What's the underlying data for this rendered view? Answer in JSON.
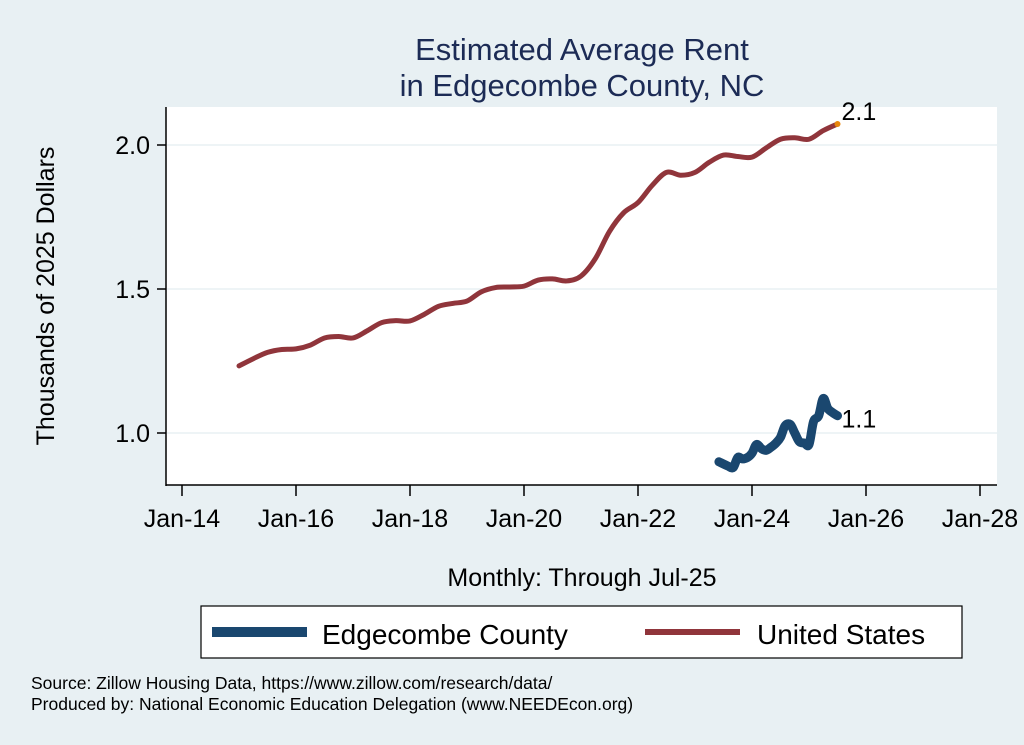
{
  "chart_data": {
    "type": "line",
    "title": [
      "Estimated Average Rent",
      "in Edgecombe County, NC"
    ],
    "xlabel": "Monthly: Through Jul-25",
    "ylabel": "Thousands of 2025 Dollars",
    "xlim": [
      2013.75,
      2028.3
    ],
    "ylim": [
      0.82,
      2.13
    ],
    "x_ticks": [
      {
        "value": 2014,
        "label": "Jan-14"
      },
      {
        "value": 2016,
        "label": "Jan-16"
      },
      {
        "value": 2018,
        "label": "Jan-18"
      },
      {
        "value": 2020,
        "label": "Jan-20"
      },
      {
        "value": 2022,
        "label": "Jan-22"
      },
      {
        "value": 2024,
        "label": "Jan-24"
      },
      {
        "value": 2026,
        "label": "Jan-26"
      },
      {
        "value": 2028,
        "label": "Jan-28"
      }
    ],
    "y_ticks": [
      {
        "value": 1.0,
        "label": "1.0"
      },
      {
        "value": 1.5,
        "label": "1.5"
      },
      {
        "value": 2.0,
        "label": "2.0"
      }
    ],
    "grid": "horizontal",
    "legend_position": "bottom",
    "series": [
      {
        "name": "Edgecombe County",
        "color": "#1a476f",
        "end_label": "1.1",
        "points": [
          [
            2023.42,
            0.9
          ],
          [
            2023.58,
            0.885
          ],
          [
            2023.67,
            0.88
          ],
          [
            2023.75,
            0.915
          ],
          [
            2023.83,
            0.91
          ],
          [
            2023.92,
            0.915
          ],
          [
            2024.0,
            0.93
          ],
          [
            2024.08,
            0.96
          ],
          [
            2024.17,
            0.945
          ],
          [
            2024.25,
            0.94
          ],
          [
            2024.33,
            0.95
          ],
          [
            2024.42,
            0.965
          ],
          [
            2024.5,
            0.985
          ],
          [
            2024.58,
            1.025
          ],
          [
            2024.67,
            1.03
          ],
          [
            2024.75,
            1.0
          ],
          [
            2024.83,
            0.97
          ],
          [
            2024.92,
            0.965
          ],
          [
            2025.0,
            0.96
          ],
          [
            2025.08,
            1.04
          ],
          [
            2025.17,
            1.06
          ],
          [
            2025.25,
            1.12
          ],
          [
            2025.33,
            1.085
          ],
          [
            2025.42,
            1.07
          ],
          [
            2025.5,
            1.06
          ]
        ]
      },
      {
        "name": "United States",
        "color": "#90353b",
        "end_label": "2.1",
        "end_marker_color": "#e8860c",
        "points": [
          [
            2015.0,
            1.233
          ],
          [
            2015.25,
            1.258
          ],
          [
            2015.5,
            1.28
          ],
          [
            2015.75,
            1.29
          ],
          [
            2016.0,
            1.292
          ],
          [
            2016.25,
            1.305
          ],
          [
            2016.5,
            1.33
          ],
          [
            2016.75,
            1.335
          ],
          [
            2017.0,
            1.33
          ],
          [
            2017.25,
            1.355
          ],
          [
            2017.5,
            1.383
          ],
          [
            2017.75,
            1.39
          ],
          [
            2018.0,
            1.389
          ],
          [
            2018.25,
            1.412
          ],
          [
            2018.5,
            1.44
          ],
          [
            2018.75,
            1.45
          ],
          [
            2019.0,
            1.458
          ],
          [
            2019.25,
            1.49
          ],
          [
            2019.5,
            1.505
          ],
          [
            2019.75,
            1.507
          ],
          [
            2020.0,
            1.51
          ],
          [
            2020.25,
            1.531
          ],
          [
            2020.5,
            1.535
          ],
          [
            2020.75,
            1.528
          ],
          [
            2021.0,
            1.545
          ],
          [
            2021.25,
            1.605
          ],
          [
            2021.5,
            1.7
          ],
          [
            2021.75,
            1.765
          ],
          [
            2022.0,
            1.8
          ],
          [
            2022.25,
            1.86
          ],
          [
            2022.5,
            1.905
          ],
          [
            2022.75,
            1.895
          ],
          [
            2023.0,
            1.905
          ],
          [
            2023.25,
            1.94
          ],
          [
            2023.5,
            1.965
          ],
          [
            2023.75,
            1.96
          ],
          [
            2024.0,
            1.958
          ],
          [
            2024.25,
            1.99
          ],
          [
            2024.5,
            2.02
          ],
          [
            2024.75,
            2.025
          ],
          [
            2025.0,
            2.02
          ],
          [
            2025.25,
            2.05
          ],
          [
            2025.5,
            2.073
          ]
        ]
      }
    ]
  },
  "legend": {
    "items": [
      {
        "label": "Edgecombe County",
        "color": "#1a476f"
      },
      {
        "label": "United States",
        "color": "#90353b"
      }
    ]
  },
  "notes": {
    "source": "Source: Zillow Housing Data, https://www.zillow.com/research/data/",
    "produced_by": "Produced by: National Economic Education Delegation (www.NEEDEcon.org)"
  },
  "colors": {
    "background": "#e8f0f3",
    "plot_background": "#ffffff",
    "gridline": "#e8f0f3",
    "title": "#1c2b55"
  }
}
